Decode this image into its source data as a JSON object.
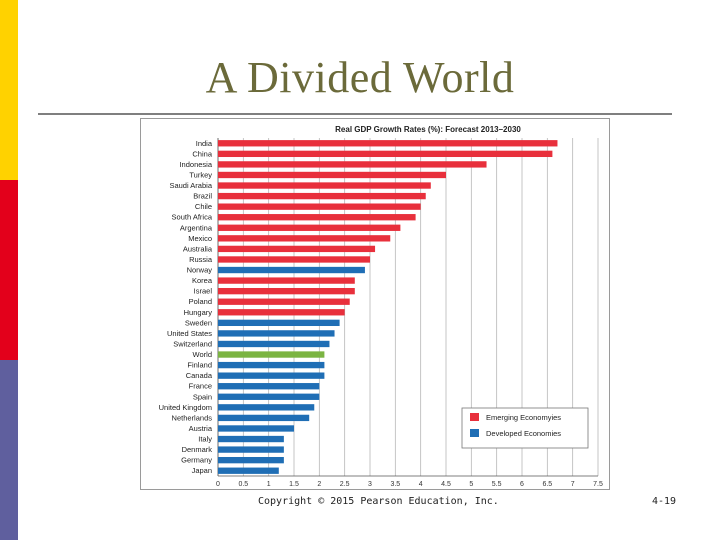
{
  "slide": {
    "title": "A Divided World",
    "footer_copyright": "Copyright © 2015 Pearson Education, Inc.",
    "page_number": "4-19",
    "accent_colors": [
      "#ffd200",
      "#e3001b",
      "#5f5f9e"
    ]
  },
  "chart_data": {
    "type": "bar",
    "orientation": "horizontal",
    "title": "Real GDP Growth Rates (%): Forecast 2013–2030",
    "categories": [
      "India",
      "China",
      "Indonesia",
      "Turkey",
      "Saudi Arabia",
      "Brazil",
      "Chile",
      "South Africa",
      "Argentina",
      "Mexico",
      "Australia",
      "Russia",
      "Norway",
      "Korea",
      "Israel",
      "Poland",
      "Hungary",
      "Sweden",
      "United States",
      "Switzerland",
      "World",
      "Finland",
      "Canada",
      "France",
      "Spain",
      "United Kingdom",
      "Netherlands",
      "Austria",
      "Italy",
      "Denmark",
      "Germany",
      "Japan"
    ],
    "values": [
      6.7,
      6.6,
      5.3,
      4.5,
      4.2,
      4.1,
      4.0,
      3.9,
      3.6,
      3.4,
      3.1,
      3.0,
      2.9,
      2.7,
      2.7,
      2.6,
      2.5,
      2.4,
      2.3,
      2.2,
      2.1,
      2.1,
      2.1,
      2.0,
      2.0,
      1.9,
      1.8,
      1.5,
      1.3,
      1.3,
      1.3,
      1.2
    ],
    "groups": [
      "emerging",
      "emerging",
      "emerging",
      "emerging",
      "emerging",
      "emerging",
      "emerging",
      "emerging",
      "emerging",
      "emerging",
      "emerging",
      "emerging",
      "developed",
      "emerging",
      "emerging",
      "emerging",
      "emerging",
      "developed",
      "developed",
      "developed",
      "world",
      "developed",
      "developed",
      "developed",
      "developed",
      "developed",
      "developed",
      "developed",
      "developed",
      "developed",
      "developed",
      "developed"
    ],
    "legend": [
      {
        "key": "emerging",
        "label": "Emerging Economyies",
        "color": "#e8303c"
      },
      {
        "key": "developed",
        "label": "Developed Economies",
        "color": "#1f6eb5"
      }
    ],
    "world_color": "#7bb442",
    "xticks": [
      "0",
      "0.5",
      "1",
      "1.5",
      "2",
      "2.5",
      "3",
      "3.5",
      "4",
      "4.5",
      "5",
      "5.5",
      "6",
      "6.5",
      "7",
      "7.5"
    ],
    "xlim": [
      0,
      7.5
    ],
    "grid": true,
    "legend_position": "lower-right"
  }
}
